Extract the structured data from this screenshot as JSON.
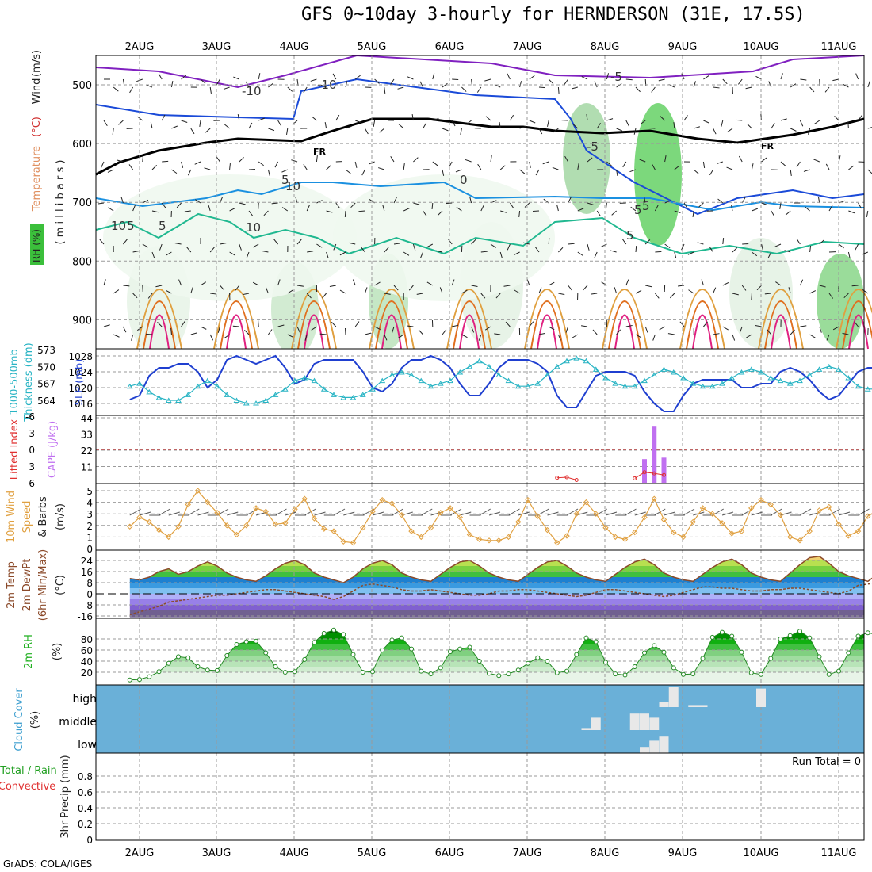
{
  "title": "GFS 0~10day 3-hourly for HERNDERSON (31E, 17.5S)",
  "footer": "GrADS: COLA/IGES",
  "dates": [
    "2AUG",
    "3AUG",
    "4AUG",
    "5AUG",
    "6AUG",
    "7AUG",
    "8AUG",
    "9AUG",
    "10AUG",
    "11AUG"
  ],
  "colors": {
    "grid": "#9a9a9a",
    "slp": "#1f3fd0",
    "thickness": "#28b4c4",
    "speed": "#e0a040",
    "cape": "#c070f0",
    "li": "#e03030",
    "temp": "#8b4a2a",
    "dew": "#8b4a2a",
    "rh": "#22b022",
    "cloud_bg": "#6ab0d8",
    "cloud": "#e8e8e8",
    "iso_neg10": "#8020c0",
    "iso_5": "#1a4ad8",
    "iso_0": "#1a90e0",
    "iso_10": "#20b890",
    "iso_15": "#e0a040",
    "iso_20": "#e07020",
    "iso_25": "#e02080",
    "frz": "#000000"
  },
  "panels": {
    "upper": {
      "ylabel_parts": [
        "RH (%)",
        "Temperature",
        "(°C)",
        "Wind",
        "(m/s)"
      ],
      "ylabel_mb": "( m i l l i b a r s )",
      "yticks": [
        "500",
        "600",
        "700",
        "800",
        "900"
      ],
      "contour_labels": [
        "-10",
        "-5",
        "-5",
        "-10",
        "FR",
        "FR",
        "5",
        "5",
        "5",
        "10",
        "10",
        "5",
        "0",
        "10",
        "5",
        "5"
      ]
    },
    "slp": {
      "label1": "1000-500mb",
      "label2": "Thickness (dm)",
      "label3": "SLP (mb)",
      "left_ticks": [
        "573",
        "570",
        "567",
        "564"
      ],
      "right_ticks": [
        "1028",
        "1024",
        "1020",
        "1016"
      ]
    },
    "cape": {
      "label1": "Lifted Index",
      "label2": "CAPE (J/kg)",
      "left_ticks": [
        "-6",
        "-3",
        "0",
        "3",
        "6"
      ],
      "right_ticks": [
        "44",
        "33",
        "22",
        "11"
      ]
    },
    "wind": {
      "label1": "10m Wind",
      "label2": "Speed",
      "label3": "& Barbs",
      "label4": "(m/s)",
      "ticks": [
        "5",
        "4",
        "3",
        "2",
        "1",
        "0"
      ]
    },
    "temp": {
      "label1": "2m Temp",
      "label2": "2m DewPt",
      "label3": "(6hr Min/Max)",
      "label4": "(°C)",
      "ticks": [
        "24",
        "16",
        "8",
        "0",
        "-8",
        "-16"
      ]
    },
    "rh": {
      "label1": "2m RH",
      "label2": "(%)",
      "ticks": [
        "80",
        "60",
        "40",
        "20"
      ]
    },
    "cloud": {
      "label1": "Cloud Cover",
      "label2": "(%)",
      "levels": [
        "high",
        "middle",
        "low"
      ]
    },
    "precip": {
      "label1": "Total / Rain",
      "label2": "Convective",
      "label3": "3hr Precip (mm)",
      "ticks": [
        "0.8",
        "0.6",
        "0.4",
        "0.2",
        "0"
      ],
      "run_total": "Run Total = 0"
    }
  },
  "chart_data": [
    {
      "type": "line",
      "name": "SLP and 1000-500mb thickness",
      "x_units": "3-hourly steps from 1AUG 18Z",
      "series": [
        {
          "name": "SLP (mb)",
          "values": [
            1017,
            1018,
            1023,
            1025,
            1025,
            1026,
            1026,
            1024,
            1020,
            1022,
            1027,
            1028,
            1027,
            1026,
            1027,
            1028,
            1025,
            1021,
            1022,
            1026,
            1027,
            1027,
            1027,
            1027,
            1024,
            1020,
            1019,
            1021,
            1025,
            1027,
            1027,
            1028,
            1027,
            1025,
            1021,
            1018,
            1018,
            1021,
            1025,
            1027,
            1027,
            1027,
            1026,
            1024,
            1018,
            1015,
            1015,
            1019,
            1023,
            1024,
            1024,
            1024,
            1023,
            1019,
            1016,
            1014,
            1014,
            1018,
            1021,
            1022,
            1022,
            1022,
            1022,
            1020,
            1020,
            1021,
            1021,
            1024,
            1025,
            1024,
            1022,
            1019,
            1017,
            1018,
            1021,
            1024,
            1025,
            1025,
            1024,
            1022,
            1019,
            1019,
            1020,
            1023,
            1025,
            1025,
            1023,
            1020,
            1021
          ]
        },
        {
          "name": "Thickness (dm)",
          "values": [
            566.5,
            567.0,
            565.5,
            564.5,
            564.0,
            564.0,
            565.0,
            566.5,
            567.5,
            566.5,
            565.0,
            564.0,
            563.5,
            563.5,
            564.0,
            565.0,
            566.0,
            567.5,
            568.0,
            567.5,
            566.0,
            565.0,
            564.5,
            564.5,
            565.0,
            566.0,
            567.5,
            568.5,
            569.0,
            568.5,
            567.5,
            566.5,
            567.0,
            567.5,
            569.0,
            570.0,
            571.0,
            570.0,
            568.5,
            567.5,
            566.5,
            566.5,
            567.0,
            568.5,
            570.0,
            571.0,
            571.5,
            571.0,
            569.5,
            568.0,
            567.0,
            566.5,
            566.5,
            567.5,
            568.5,
            569.5,
            569.0,
            568.0,
            567.0,
            566.5,
            566.5,
            567.0,
            568.0,
            569.0,
            569.5,
            569.0,
            568.0,
            567.5,
            567.0,
            567.5,
            568.5,
            569.5,
            570.0,
            569.5,
            568.0,
            566.5,
            566.0,
            566.0,
            565.5,
            565.5,
            566.5,
            568.5,
            570.0,
            570.5,
            570.0,
            569.0,
            568.0,
            567.5,
            568.5
          ]
        }
      ]
    },
    {
      "type": "bar",
      "name": "CAPE",
      "bars": [
        {
          "x": 54,
          "value": 16
        },
        {
          "x": 55,
          "value": 38
        },
        {
          "x": 56,
          "value": 17
        }
      ]
    },
    {
      "type": "line",
      "name": "Lifted Index",
      "points": [
        {
          "x": 45,
          "value": 5.1
        },
        {
          "x": 46,
          "value": 5.0
        },
        {
          "x": 47,
          "value": 5.5
        },
        {
          "x": 53,
          "value": 5.2
        },
        {
          "x": 54,
          "value": 4.1
        },
        {
          "x": 55,
          "value": 4.3
        },
        {
          "x": 56,
          "value": 4.6
        }
      ]
    },
    {
      "type": "line",
      "name": "10m wind speed (m/s)",
      "values": [
        1.9,
        2.7,
        2.3,
        1.6,
        1.0,
        1.9,
        3.8,
        5.0,
        4.0,
        3.1,
        2.0,
        1.2,
        2.0,
        3.5,
        3.2,
        2.1,
        2.2,
        3.4,
        4.3,
        2.6,
        1.7,
        1.5,
        0.6,
        0.5,
        1.8,
        3.2,
        4.2,
        3.9,
        2.9,
        1.5,
        1.0,
        1.8,
        3.1,
        3.5,
        2.7,
        1.2,
        0.8,
        0.7,
        0.7,
        1.0,
        2.3,
        4.2,
        2.8,
        1.6,
        0.5,
        1.1,
        3.0,
        4.0,
        3.0,
        1.8,
        1.0,
        0.8,
        1.4,
        2.7,
        4.3,
        2.5,
        1.4,
        1.0,
        2.3,
        3.5,
        3.0,
        2.2,
        1.3,
        1.5,
        3.5,
        4.2,
        3.8,
        2.9,
        1.0,
        0.7,
        1.5,
        3.3,
        3.6,
        2.1,
        1.1,
        1.5,
        2.8,
        3.3,
        2.3,
        1.0,
        0.7,
        1.4,
        3.1,
        3.7,
        3.8,
        2.5,
        1.5,
        1.1,
        1.9
      ]
    },
    {
      "type": "area",
      "name": "2m temperature and dewpoint (°C)",
      "series": [
        {
          "name": "2m Temp",
          "values": [
            11,
            10,
            12,
            16,
            18,
            14,
            16,
            20,
            23,
            20,
            15,
            12,
            10,
            9,
            13,
            18,
            22,
            24,
            21,
            15,
            12,
            10,
            8,
            12,
            18,
            22,
            24,
            21,
            15,
            12,
            10,
            9,
            14,
            19,
            23,
            24,
            20,
            15,
            12,
            10,
            9,
            14,
            19,
            23,
            24,
            20,
            15,
            12,
            10,
            9,
            14,
            19,
            23,
            25,
            21,
            15,
            12,
            10,
            9,
            14,
            19,
            23,
            25,
            21,
            15,
            12,
            10,
            9,
            15,
            21,
            26,
            27,
            22,
            16,
            13,
            11,
            9,
            14,
            19,
            23,
            24,
            20,
            15,
            12,
            10,
            12,
            19,
            23,
            24
          ]
        },
        {
          "name": "2m DewPt",
          "values": [
            -15,
            -13,
            -11,
            -9,
            -6,
            -5,
            -4,
            -3,
            -2,
            -1,
            -1,
            0,
            1,
            2,
            3,
            3,
            2,
            1,
            0,
            -1,
            -2,
            -4,
            -2,
            2,
            6,
            7,
            6,
            5,
            3,
            2,
            2,
            3,
            2,
            1,
            0,
            -1,
            -1,
            0,
            2,
            2,
            3,
            3,
            2,
            1,
            0,
            -1,
            -2,
            -1,
            1,
            3,
            3,
            2,
            1,
            0,
            -1,
            -2,
            -1,
            1,
            3,
            5,
            5,
            4,
            4,
            3,
            2,
            2,
            3,
            3,
            4,
            4,
            3,
            2,
            1,
            0,
            2,
            6,
            7,
            8,
            7,
            5,
            4,
            3,
            2,
            2,
            3,
            5,
            7,
            8,
            10
          ]
        }
      ]
    },
    {
      "type": "area",
      "name": "2m RH (%)",
      "values": [
        6,
        7,
        12,
        21,
        36,
        48,
        46,
        30,
        24,
        23,
        50,
        70,
        75,
        76,
        55,
        30,
        20,
        21,
        43,
        74,
        90,
        96,
        88,
        52,
        20,
        21,
        60,
        78,
        82,
        62,
        22,
        17,
        28,
        57,
        62,
        65,
        40,
        18,
        14,
        17,
        24,
        36,
        46,
        40,
        19,
        22,
        52,
        82,
        75,
        38,
        17,
        15,
        30,
        55,
        68,
        56,
        28,
        16,
        17,
        45,
        83,
        92,
        85,
        56,
        19,
        16,
        45,
        80,
        86,
        94,
        82,
        48,
        16,
        22,
        55,
        85,
        91,
        88
      ]
    },
    {
      "type": "bar",
      "name": "Cloud cover (%)",
      "series": [
        {
          "name": "high",
          "bars": [
            {
              "x": 57,
              "value": 100
            },
            {
              "x": 56,
              "value": 25
            },
            {
              "x": 59,
              "value": 10
            },
            {
              "x": 60,
              "value": 10
            },
            {
              "x": 66,
              "value": 90
            }
          ]
        },
        {
          "name": "middle",
          "bars": [
            {
              "x": 48,
              "value": 10
            },
            {
              "x": 49,
              "value": 60
            },
            {
              "x": 53,
              "value": 80
            },
            {
              "x": 54,
              "value": 80
            },
            {
              "x": 55,
              "value": 60
            }
          ]
        },
        {
          "name": "low",
          "bars": [
            {
              "x": 54,
              "value": 30
            },
            {
              "x": 55,
              "value": 60
            },
            {
              "x": 56,
              "value": 80
            }
          ]
        }
      ]
    },
    {
      "type": "bar",
      "name": "3hr Precip (mm)",
      "values": [],
      "ylim": [
        0,
        1
      ]
    }
  ]
}
